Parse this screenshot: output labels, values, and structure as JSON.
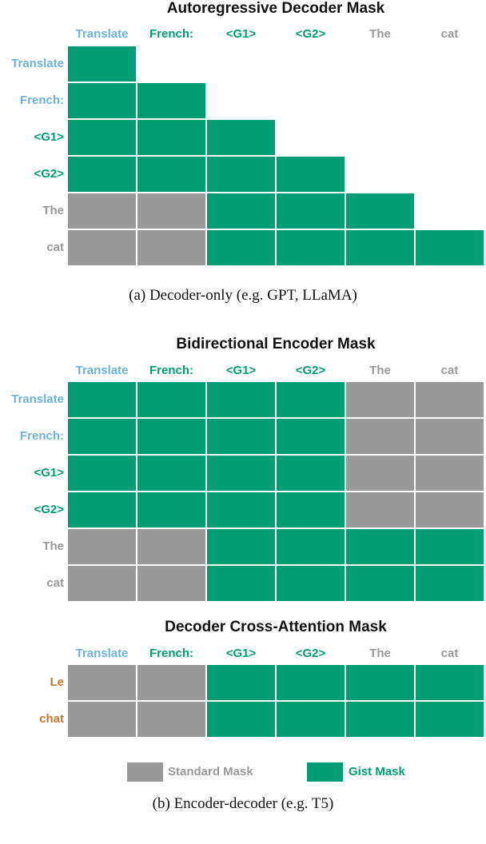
{
  "colors": {
    "gist": "#019e75",
    "standard": "#999999",
    "blue": "#6bb3db",
    "orange": "#c8752c"
  },
  "columns": [
    {
      "label": "Translate",
      "color": "blue"
    },
    {
      "label": "French:",
      "color": "green"
    },
    {
      "label": "<G1>",
      "color": "green"
    },
    {
      "label": "<G2>",
      "color": "green"
    },
    {
      "label": "The",
      "color": "gray"
    },
    {
      "label": "cat",
      "color": "gray"
    }
  ],
  "panel1": {
    "title": "Autoregressive Decoder Mask",
    "rows": [
      "Translate",
      "French:",
      "<G1>",
      "<G2>",
      "The",
      "cat"
    ],
    "row_colors": [
      "blue",
      "blue",
      "green",
      "green",
      "gray",
      "gray"
    ],
    "matrix": [
      [
        "g",
        "e",
        "e",
        "e",
        "e",
        "e"
      ],
      [
        "g",
        "g",
        "e",
        "e",
        "e",
        "e"
      ],
      [
        "g",
        "g",
        "g",
        "e",
        "e",
        "e"
      ],
      [
        "g",
        "g",
        "g",
        "g",
        "e",
        "e"
      ],
      [
        "s",
        "s",
        "g",
        "g",
        "g",
        "e"
      ],
      [
        "s",
        "s",
        "g",
        "g",
        "g",
        "g"
      ]
    ]
  },
  "caption_a": "(a) Decoder-only (e.g. GPT, LLaMA)",
  "panel2": {
    "title": "Bidirectional Encoder Mask",
    "rows": [
      "Translate",
      "French:",
      "<G1>",
      "<G2>",
      "The",
      "cat"
    ],
    "row_colors": [
      "blue",
      "blue",
      "green",
      "green",
      "gray",
      "gray"
    ],
    "matrix": [
      [
        "g",
        "g",
        "g",
        "g",
        "s",
        "s"
      ],
      [
        "g",
        "g",
        "g",
        "g",
        "s",
        "s"
      ],
      [
        "g",
        "g",
        "g",
        "g",
        "s",
        "s"
      ],
      [
        "g",
        "g",
        "g",
        "g",
        "s",
        "s"
      ],
      [
        "s",
        "s",
        "g",
        "g",
        "g",
        "g"
      ],
      [
        "s",
        "s",
        "g",
        "g",
        "g",
        "g"
      ]
    ]
  },
  "panel3": {
    "title": "Decoder Cross-Attention Mask",
    "rows": [
      "Le",
      "chat"
    ],
    "row_colors": [
      "orange",
      "orange"
    ],
    "matrix": [
      [
        "s",
        "s",
        "g",
        "g",
        "g",
        "g"
      ],
      [
        "s",
        "s",
        "g",
        "g",
        "g",
        "g"
      ]
    ]
  },
  "legend": {
    "standard": "Standard Mask",
    "gist": "Gist Mask"
  },
  "caption_b": "(b) Encoder-decoder (e.g. T5)"
}
